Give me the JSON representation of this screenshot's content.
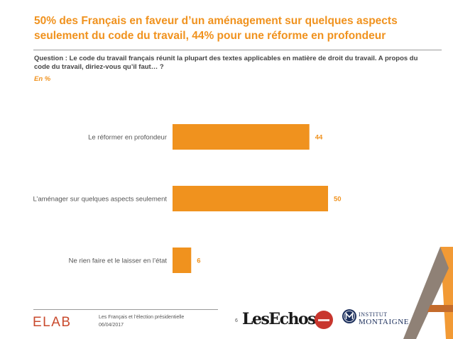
{
  "header": {
    "title": "50% des Français en faveur d’un aménagement sur quelques aspects seulement du code du travail, 44% pour une réforme en profondeur",
    "question": "Question : Le code du travail français réunit la plupart des textes applicables en matière de droit du travail. A propos du code du travail, diriez-vous qu’il faut… ?",
    "unit": "En  %"
  },
  "chart_data": {
    "type": "bar",
    "orientation": "horizontal",
    "categories": [
      "Le réformer en profondeur",
      "L’aménager sur quelques aspects seulement",
      "Ne rien faire et le laisser en l’état"
    ],
    "values": [
      44,
      50,
      6
    ],
    "bar_color": "#f0921e",
    "label_color": "#f0921e",
    "xlim": [
      0,
      50
    ],
    "grid": false
  },
  "footer": {
    "brand": "ELABE",
    "survey": "Les Français et l’élection présidentielle",
    "date": "06/04/2017",
    "page": "6",
    "partner1": "LesEchos",
    "partner2_line1": "INSTITUT",
    "partner2_line2": "MONTAIGNE"
  }
}
